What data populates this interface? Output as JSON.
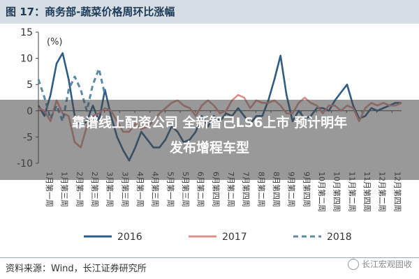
{
  "title": "图 17：商务部-蔬菜价格周环比涨幅",
  "source": "资料来源：Wind，长江证券研究所",
  "watermark": "长江宏观固收",
  "overlay": {
    "line1": "靠谱线上配资公司  全新智己LS6上市 预计明年",
    "line2": "发布增程车型"
  },
  "chart_data": {
    "type": "line",
    "ylabel": "(%)",
    "ylim": [
      -10,
      15
    ],
    "yticks": [
      -10,
      -5,
      0,
      5,
      10,
      15
    ],
    "x_tick_labels": [
      "1月第一周",
      "1月第三周",
      "2月第一周",
      "2月第三周",
      "3月第一周",
      "3月第三周",
      "4月第一周",
      "4月第三周",
      "5月第一周",
      "5月第三周",
      "6月第二周",
      "6月第四周",
      "7月第二周",
      "7月第四周",
      "8月第二周",
      "8月第四周",
      "9月第二周",
      "9月第四周",
      "10月第二周",
      "10月第四周",
      "11月第二周",
      "11月第四周",
      "12月第二周",
      "12月第四周"
    ],
    "series": [
      {
        "name": "2016",
        "color": "#2e5c85",
        "style": "solid",
        "values": [
          1.0,
          -1.0,
          3.0,
          9.0,
          11.0,
          6.0,
          -1.0,
          -3.0,
          -2.0,
          1.0,
          -2.0,
          4.0,
          -1.0,
          -5.0,
          -7.5,
          -9.5,
          -7.0,
          -4.0,
          -5.5,
          -7.0,
          -7.0,
          -5.5,
          -3.0,
          -4.0,
          -6.0,
          -5.5,
          -4.0,
          -1.0,
          -3.0,
          -1.0,
          -2.0,
          -0.5,
          -1.0,
          0.5,
          -1.0,
          -2.5,
          -1.0,
          -1.0,
          2.0,
          6.0,
          10.5,
          3.0,
          -2.0,
          0.0,
          -1.5,
          -1.0,
          0.5,
          0.5,
          0.0,
          2.0,
          3.5,
          5.0,
          1.0,
          -1.5,
          -1.0,
          0.5,
          0.0,
          0.5,
          1.0,
          1.5,
          1.5
        ]
      },
      {
        "name": "2017",
        "color": "#d9908a",
        "style": "solid",
        "values": [
          0.5,
          0.0,
          -2.0,
          2.0,
          -0.5,
          -1.0,
          -6.0,
          -7.0,
          -3.0,
          -1.0,
          -0.5,
          0.5,
          0.0,
          -2.0,
          -4.0,
          -4.0,
          -2.5,
          -3.5,
          -3.0,
          -2.0,
          -0.5,
          0.5,
          1.5,
          2.0,
          1.0,
          0.5,
          -1.0,
          1.0,
          2.0,
          1.0,
          -0.5,
          0.0,
          2.0,
          3.0,
          2.5,
          0.5,
          2.0,
          1.5,
          1.5,
          2.0,
          1.0,
          -0.5,
          -0.5,
          1.5,
          2.5,
          1.5,
          1.0,
          -0.5,
          1.0,
          1.0,
          0.0,
          1.0,
          0.5,
          -2.0,
          0.5,
          1.5,
          1.0,
          1.5,
          1.0,
          1.0,
          1.5
        ]
      },
      {
        "name": "2018",
        "color": "#5a8aa6",
        "style": "dashed",
        "values": [
          6.0,
          2.5,
          -1.5,
          1.0,
          -2.0,
          4.0,
          6.5,
          4.0,
          0.0,
          5.0,
          8.0,
          3.0
        ]
      }
    ],
    "legend_position": "bottom"
  }
}
